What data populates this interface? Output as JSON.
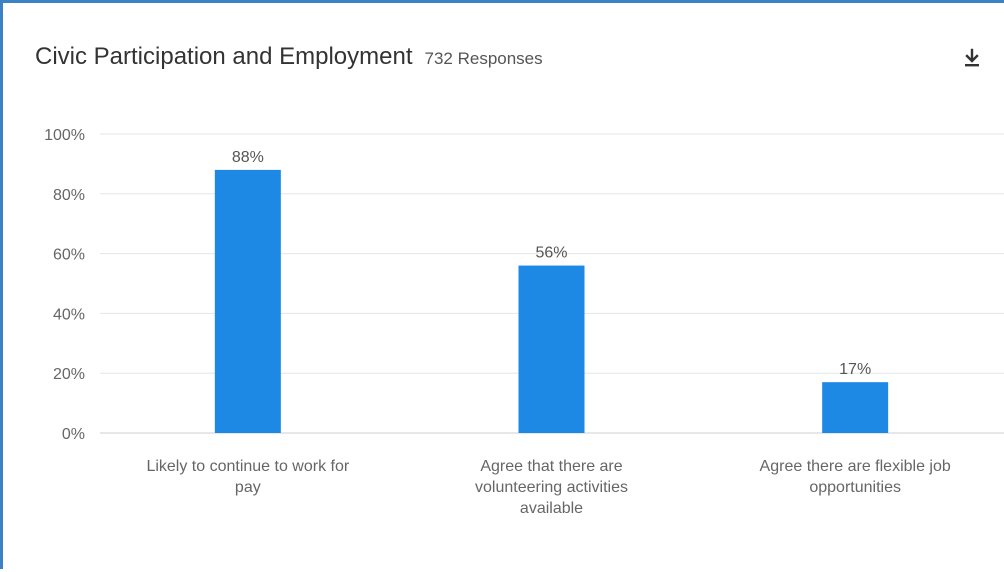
{
  "header": {
    "title": "Civic Participation and Employment",
    "responses": "732 Responses"
  },
  "icons": {
    "download": "download-icon"
  },
  "chart_data": {
    "type": "bar",
    "categories": [
      [
        "Likely to continue to work for",
        "pay"
      ],
      [
        "Agree that there are",
        "volunteering activities",
        "available"
      ],
      [
        "Agree there are flexible job",
        "opportunities"
      ]
    ],
    "values": [
      88,
      56,
      17
    ],
    "data_labels": [
      "88%",
      "56%",
      "17%"
    ],
    "ylim": [
      0,
      100
    ],
    "yticks": [
      0,
      20,
      40,
      60,
      80,
      100
    ],
    "ytick_labels": [
      "0%",
      "20%",
      "40%",
      "60%",
      "80%",
      "100%"
    ],
    "bar_color": "#1e88e5",
    "grid": true
  }
}
